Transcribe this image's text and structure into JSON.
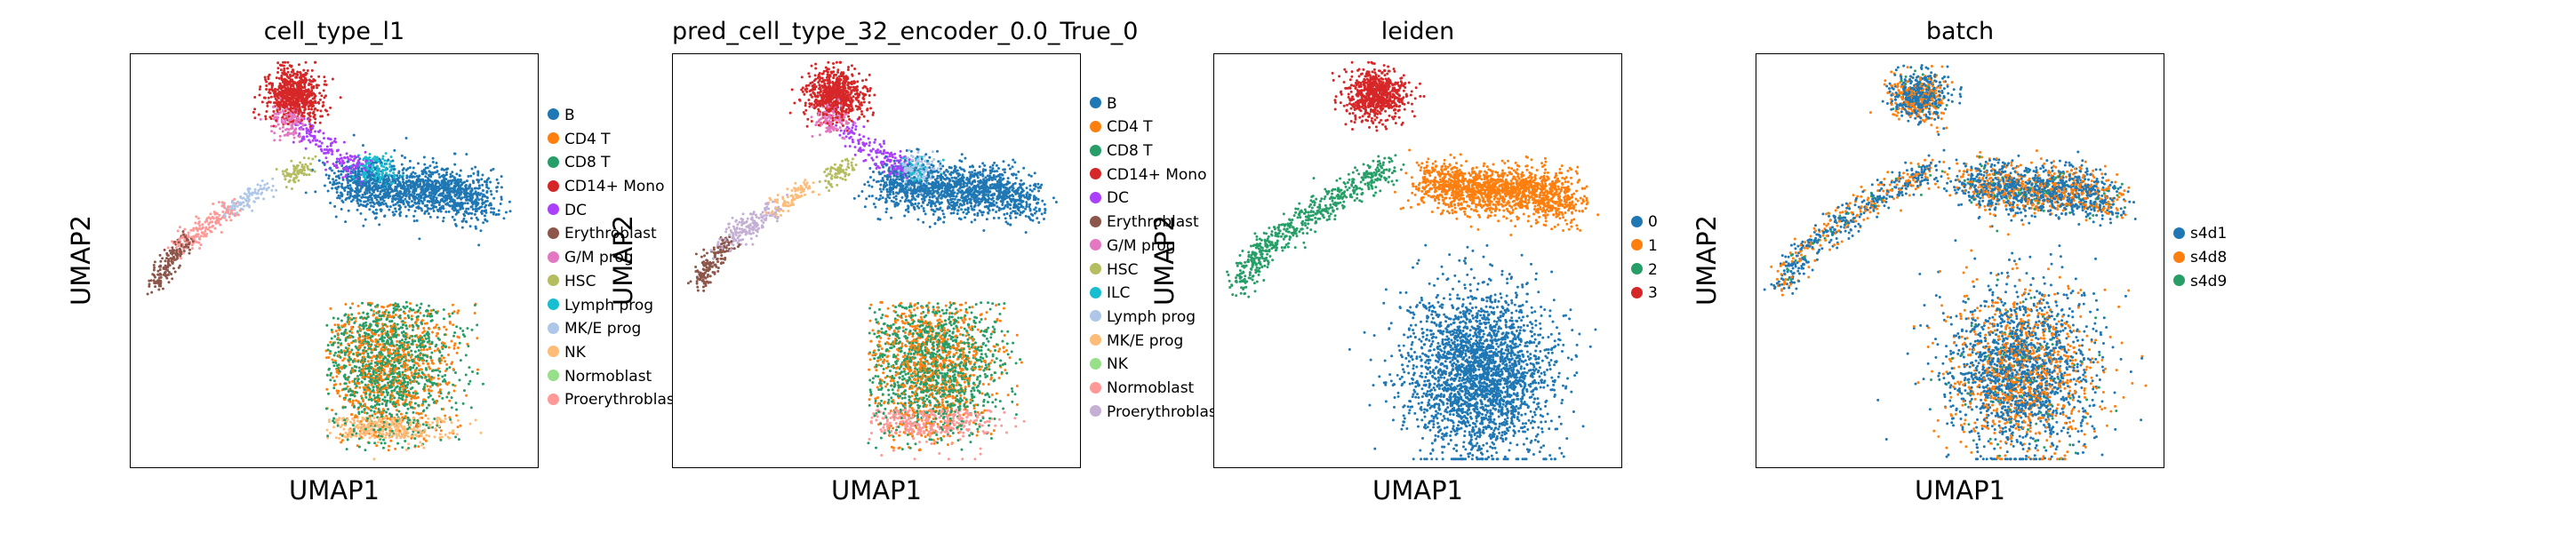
{
  "figure": {
    "xlabel": "UMAP1",
    "ylabel": "UMAP2"
  },
  "chart_data": [
    {
      "type": "scatter",
      "title": "cell_type_l1",
      "xlabel": "UMAP1",
      "ylabel": "UMAP2",
      "grid": false,
      "legend_position": "right",
      "categories": [
        "B",
        "CD4 T",
        "CD8 T",
        "CD14+ Mono",
        "DC",
        "Erythroblast",
        "G/M prog",
        "HSC",
        "Lymph prog",
        "MK/E prog",
        "NK",
        "Normoblast",
        "Proerythroblast"
      ],
      "colors": [
        "#1f77b4",
        "#ff7f0e",
        "#279e68",
        "#d62728",
        "#aa40fc",
        "#8c564b",
        "#e377c2",
        "#b5bd61",
        "#17becf",
        "#aec7e8",
        "#ffbb78",
        "#98df8a",
        "#ff9896"
      ]
    },
    {
      "type": "scatter",
      "title": "pred_cell_type_32_encoder_0.0_True_0",
      "xlabel": "UMAP1",
      "ylabel": "UMAP2",
      "grid": false,
      "legend_position": "right",
      "categories": [
        "B",
        "CD4 T",
        "CD8 T",
        "CD14+ Mono",
        "DC",
        "Erythroblast",
        "G/M prog",
        "HSC",
        "ILC",
        "Lymph prog",
        "MK/E prog",
        "NK",
        "Normoblast",
        "Proerythroblast"
      ],
      "colors": [
        "#1f77b4",
        "#ff7f0e",
        "#279e68",
        "#d62728",
        "#aa40fc",
        "#8c564b",
        "#e377c2",
        "#b5bd61",
        "#17becf",
        "#aec7e8",
        "#ffbb78",
        "#98df8a",
        "#ff9896",
        "#c5b0d5"
      ]
    },
    {
      "type": "scatter",
      "title": "leiden",
      "xlabel": "UMAP1",
      "ylabel": "UMAP2",
      "grid": false,
      "legend_position": "right",
      "categories": [
        "0",
        "1",
        "2",
        "3"
      ],
      "colors": [
        "#1f77b4",
        "#ff7f0e",
        "#279e68",
        "#d62728"
      ]
    },
    {
      "type": "scatter",
      "title": "batch",
      "xlabel": "UMAP1",
      "ylabel": "UMAP2",
      "grid": false,
      "legend_position": "right",
      "categories": [
        "s4d1",
        "s4d8",
        "s4d9"
      ],
      "colors": [
        "#1f77b4",
        "#ff7f0e",
        "#279e68"
      ]
    }
  ]
}
